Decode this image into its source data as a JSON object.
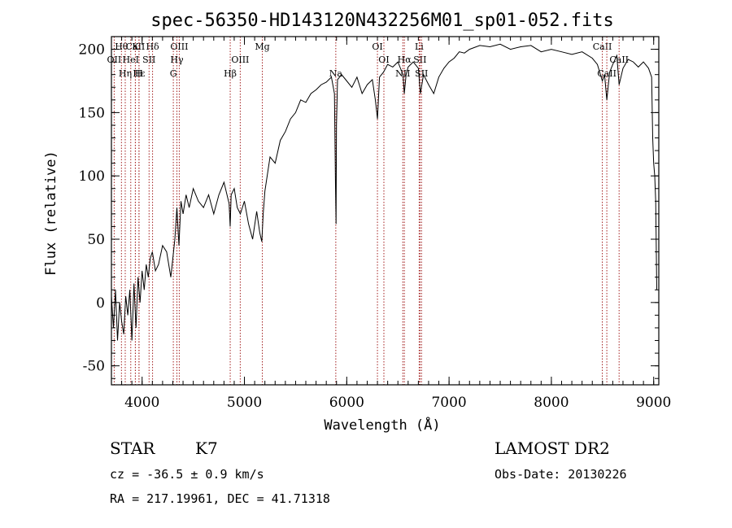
{
  "chart_data": {
    "type": "line",
    "title": "spec-56350-HD143120N432256M01_sp01-052.fits",
    "xlabel": "Wavelength (Å)",
    "ylabel": "Flux (relative)",
    "xlim": [
      3700,
      9050
    ],
    "ylim": [
      -65,
      210
    ],
    "xticks": [
      4000,
      5000,
      6000,
      7000,
      8000,
      9000
    ],
    "yticks": [
      -50,
      0,
      50,
      100,
      150,
      200
    ],
    "grid": false,
    "series": [
      {
        "x": [
          3700,
          3720,
          3740,
          3760,
          3780,
          3800,
          3820,
          3840,
          3860,
          3880,
          3900,
          3920,
          3940,
          3960,
          3980,
          4000,
          4020,
          4040,
          4060,
          4080,
          4100,
          4130,
          4160,
          4200,
          4240,
          4280,
          4300,
          4320,
          4340,
          4360,
          4380,
          4400,
          4430,
          4460,
          4500,
          4550,
          4600,
          4650,
          4700,
          4750,
          4800,
          4850,
          4861,
          4870,
          4900,
          4930,
          4960,
          5000,
          5040,
          5080,
          5120,
          5150,
          5170,
          5183,
          5200,
          5250,
          5300,
          5350,
          5400,
          5450,
          5500,
          5550,
          5600,
          5650,
          5700,
          5750,
          5800,
          5850,
          5880,
          5890,
          5896,
          5900,
          5910,
          5950,
          6000,
          6050,
          6100,
          6150,
          6200,
          6250,
          6280,
          6300,
          6320,
          6360,
          6400,
          6450,
          6500,
          6530,
          6550,
          6563,
          6580,
          6600,
          6650,
          6700,
          6720,
          6750,
          6800,
          6850,
          6900,
          6950,
          7000,
          7050,
          7100,
          7150,
          7200,
          7300,
          7400,
          7500,
          7600,
          7700,
          7800,
          7900,
          8000,
          8100,
          8200,
          8300,
          8400,
          8450,
          8498,
          8520,
          8542,
          8570,
          8600,
          8640,
          8662,
          8700,
          8750,
          8800,
          8850,
          8900,
          8950,
          8980,
          8990,
          9000,
          9010,
          9020,
          9030
        ],
        "values": [
          5,
          -20,
          10,
          -30,
          0,
          -15,
          -25,
          5,
          -10,
          10,
          -30,
          15,
          -20,
          20,
          0,
          25,
          10,
          30,
          20,
          35,
          40,
          25,
          30,
          45,
          40,
          20,
          35,
          50,
          75,
          45,
          80,
          70,
          85,
          75,
          90,
          80,
          75,
          85,
          70,
          85,
          95,
          78,
          60,
          85,
          90,
          75,
          70,
          80,
          62,
          50,
          72,
          55,
          48,
          70,
          88,
          115,
          110,
          128,
          135,
          145,
          150,
          160,
          158,
          165,
          168,
          172,
          174,
          178,
          165,
          92,
          62,
          140,
          176,
          180,
          175,
          170,
          178,
          165,
          172,
          176,
          160,
          145,
          178,
          182,
          188,
          186,
          190,
          184,
          180,
          165,
          180,
          186,
          190,
          185,
          165,
          180,
          172,
          165,
          178,
          185,
          190,
          193,
          198,
          197,
          200,
          203,
          202,
          204,
          200,
          202,
          203,
          198,
          200,
          198,
          196,
          198,
          193,
          188,
          175,
          180,
          160,
          182,
          188,
          195,
          172,
          185,
          192,
          190,
          186,
          190,
          185,
          178,
          130,
          110,
          100,
          80,
          10
        ],
        "values_precision": "approximate, read off the plotted curve"
      }
    ],
    "line_markers": [
      {
        "name": "Hθ",
        "wavelength": 3798,
        "row": 1
      },
      {
        "name": "OII",
        "wavelength": 3727,
        "row": 2
      },
      {
        "name": "CaII",
        "wavelength": 3934,
        "row": 1
      },
      {
        "name": "K",
        "wavelength": 3934,
        "row": 1
      },
      {
        "name": "H",
        "wavelength": 3969,
        "row": 3
      },
      {
        "name": "Hδ",
        "wavelength": 4102,
        "row": 1
      },
      {
        "name": "HeI",
        "wavelength": 3889,
        "row": 2
      },
      {
        "name": "SII",
        "wavelength": 4068,
        "row": 2
      },
      {
        "name": "Hε",
        "wavelength": 3970,
        "row": 3
      },
      {
        "name": "Hη",
        "wavelength": 3835,
        "row": 3
      },
      {
        "name": "OIII",
        "wavelength": 4363,
        "row": 1
      },
      {
        "name": "Hγ",
        "wavelength": 4340,
        "row": 2
      },
      {
        "name": "G",
        "wavelength": 4305,
        "row": 3
      },
      {
        "name": "OIII",
        "wavelength": 4959,
        "row": 2
      },
      {
        "name": "Hβ",
        "wavelength": 4861,
        "row": 3
      },
      {
        "name": "Mg",
        "wavelength": 5175,
        "row": 1
      },
      {
        "name": "Na",
        "wavelength": 5893,
        "row": 3
      },
      {
        "name": "OI",
        "wavelength": 6300,
        "row": 1
      },
      {
        "name": "OI",
        "wavelength": 6363,
        "row": 2
      },
      {
        "name": "NII",
        "wavelength": 6548,
        "row": 3
      },
      {
        "name": "Hα",
        "wavelength": 6563,
        "row": 2
      },
      {
        "name": "Li",
        "wavelength": 6708,
        "row": 1
      },
      {
        "name": "SII",
        "wavelength": 6716,
        "row": 2
      },
      {
        "name": "SII",
        "wavelength": 6731,
        "row": 3
      },
      {
        "name": "CaII",
        "wavelength": 8498,
        "row": 1
      },
      {
        "name": "CaII",
        "wavelength": 8542,
        "row": 3
      },
      {
        "name": "CaII",
        "wavelength": 8662,
        "row": 2
      }
    ]
  },
  "info": {
    "object_class": "STAR",
    "subclass": "K7",
    "redshift": "cz = -36.5 ± 0.9 km/s",
    "coords": "RA = 217.19961, DEC =  41.71318",
    "survey": "LAMOST DR2",
    "obs_date": "Obs-Date: 20130226"
  },
  "colors": {
    "line_marker": "#a31f1f",
    "spectrum": "#000000"
  }
}
